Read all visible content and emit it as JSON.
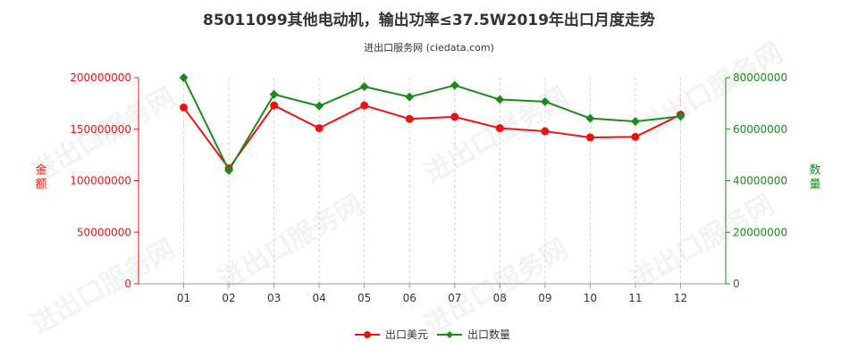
{
  "chart": {
    "title": "85011099其他电动机，输出功率≤37.5W2019年出口月度走势",
    "subtitle": "进出口服务网 (ciedata.com)",
    "watermark": "进出口服务网"
  },
  "chart_data": {
    "type": "line",
    "categories": [
      "01",
      "02",
      "03",
      "04",
      "05",
      "06",
      "07",
      "08",
      "09",
      "10",
      "11",
      "12"
    ],
    "series": [
      {
        "name": "出口美元",
        "axis": "left",
        "color": "#ee1111",
        "values": [
          171000000,
          112000000,
          173000000,
          151000000,
          173000000,
          160000000,
          162000000,
          151000000,
          148000000,
          142000000,
          142500000,
          164000000
        ]
      },
      {
        "name": "出口数量",
        "axis": "right",
        "color": "#1a8a1a",
        "values": [
          80000000,
          44000000,
          73500000,
          69000000,
          76500000,
          72500000,
          77000000,
          71500000,
          70700000,
          64200000,
          63000000,
          65000000
        ]
      }
    ],
    "y_left": {
      "label": "金额",
      "min": 0,
      "max": 200000000,
      "ticks": [
        "0",
        "50000000",
        "100000000",
        "150000000",
        "200000000"
      ],
      "color": "#ee1111"
    },
    "y_right": {
      "label": "数量",
      "min": 0,
      "max": 80000000,
      "ticks": [
        "0",
        "20000000",
        "40000000",
        "60000000",
        "80000000"
      ],
      "color": "#1a8a1a"
    },
    "grid": "vertical-dashed",
    "legend_position": "bottom"
  }
}
